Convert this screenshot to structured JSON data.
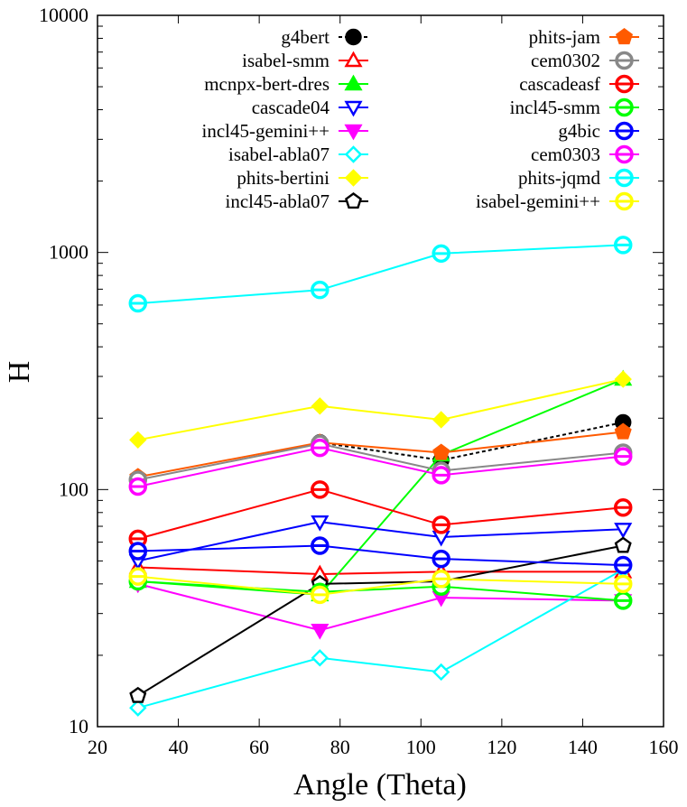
{
  "chart_data": {
    "type": "line",
    "title": "",
    "xlabel": "Angle (Theta)",
    "ylabel": "H",
    "xlim": [
      20,
      160
    ],
    "ylim": [
      10,
      10000
    ],
    "yscale": "log",
    "x_ticks": [
      "20",
      "40",
      "60",
      "80",
      "100",
      "120",
      "140",
      "160"
    ],
    "y_ticks": [
      "10",
      "100",
      "1000",
      "10000"
    ],
    "grid": false,
    "legend_position": "top, two columns",
    "x": [
      30,
      75,
      105,
      150
    ],
    "series": [
      {
        "name": "g4bert",
        "color": "#000000",
        "marker": "circle-filled",
        "dash": "4,3",
        "values": [
          null,
          158,
          133,
          192
        ]
      },
      {
        "name": "isabel-smm",
        "color": "#ff0000",
        "marker": "triangle-open",
        "dash": "",
        "values": [
          47,
          44,
          45,
          45
        ]
      },
      {
        "name": "mcnpx-bert-dres",
        "color": "#00ff00",
        "marker": "triangle-filled",
        "dash": "",
        "values": [
          41,
          36,
          140,
          292
        ]
      },
      {
        "name": "cascade04",
        "color": "#0000ff",
        "marker": "triangle-down-open",
        "dash": "",
        "values": [
          50,
          73,
          63,
          68
        ]
      },
      {
        "name": "incl45-gemini++",
        "color": "#ff00ff",
        "marker": "triangle-down-filled",
        "dash": "",
        "values": [
          40,
          25.5,
          35,
          34
        ]
      },
      {
        "name": "isabel-abla07",
        "color": "#00ffff",
        "marker": "diamond-open",
        "dash": "",
        "values": [
          12,
          19.5,
          17,
          46
        ]
      },
      {
        "name": "phits-bertini",
        "color": "#ffff00",
        "marker": "diamond-filled",
        "dash": "",
        "values": [
          162,
          225,
          197,
          292
        ]
      },
      {
        "name": "incl45-abla07",
        "color": "#000000",
        "marker": "pentagon-open",
        "dash": "",
        "values": [
          13.5,
          40,
          41,
          58
        ]
      },
      {
        "name": "phits-jam",
        "color": "#ff5a00",
        "marker": "pentagon-filled",
        "dash": "",
        "values": [
          113,
          158,
          143,
          175
        ]
      },
      {
        "name": "cem0302",
        "color": "#888888",
        "marker": "circle-half",
        "dash": "",
        "values": [
          110,
          156,
          120,
          143
        ]
      },
      {
        "name": "cascadeasf",
        "color": "#ff0000",
        "marker": "circle-half",
        "dash": "",
        "values": [
          62,
          100,
          71,
          84
        ]
      },
      {
        "name": "incl45-smm",
        "color": "#00ff00",
        "marker": "circle-half",
        "dash": "",
        "values": [
          41,
          37,
          39,
          34
        ]
      },
      {
        "name": "g4bic",
        "color": "#0000ff",
        "marker": "circle-half",
        "dash": "",
        "values": [
          55,
          58,
          51,
          48
        ]
      },
      {
        "name": "cem0303",
        "color": "#ff00ff",
        "marker": "circle-half",
        "dash": "",
        "values": [
          103,
          150,
          115,
          138
        ]
      },
      {
        "name": "phits-jqmd",
        "color": "#00ffff",
        "marker": "circle-half",
        "dash": "",
        "values": [
          610,
          695,
          990,
          1075
        ]
      },
      {
        "name": "isabel-gemini++",
        "color": "#ffff00",
        "marker": "circle-half",
        "dash": "",
        "values": [
          43,
          36,
          42,
          40
        ]
      }
    ]
  }
}
